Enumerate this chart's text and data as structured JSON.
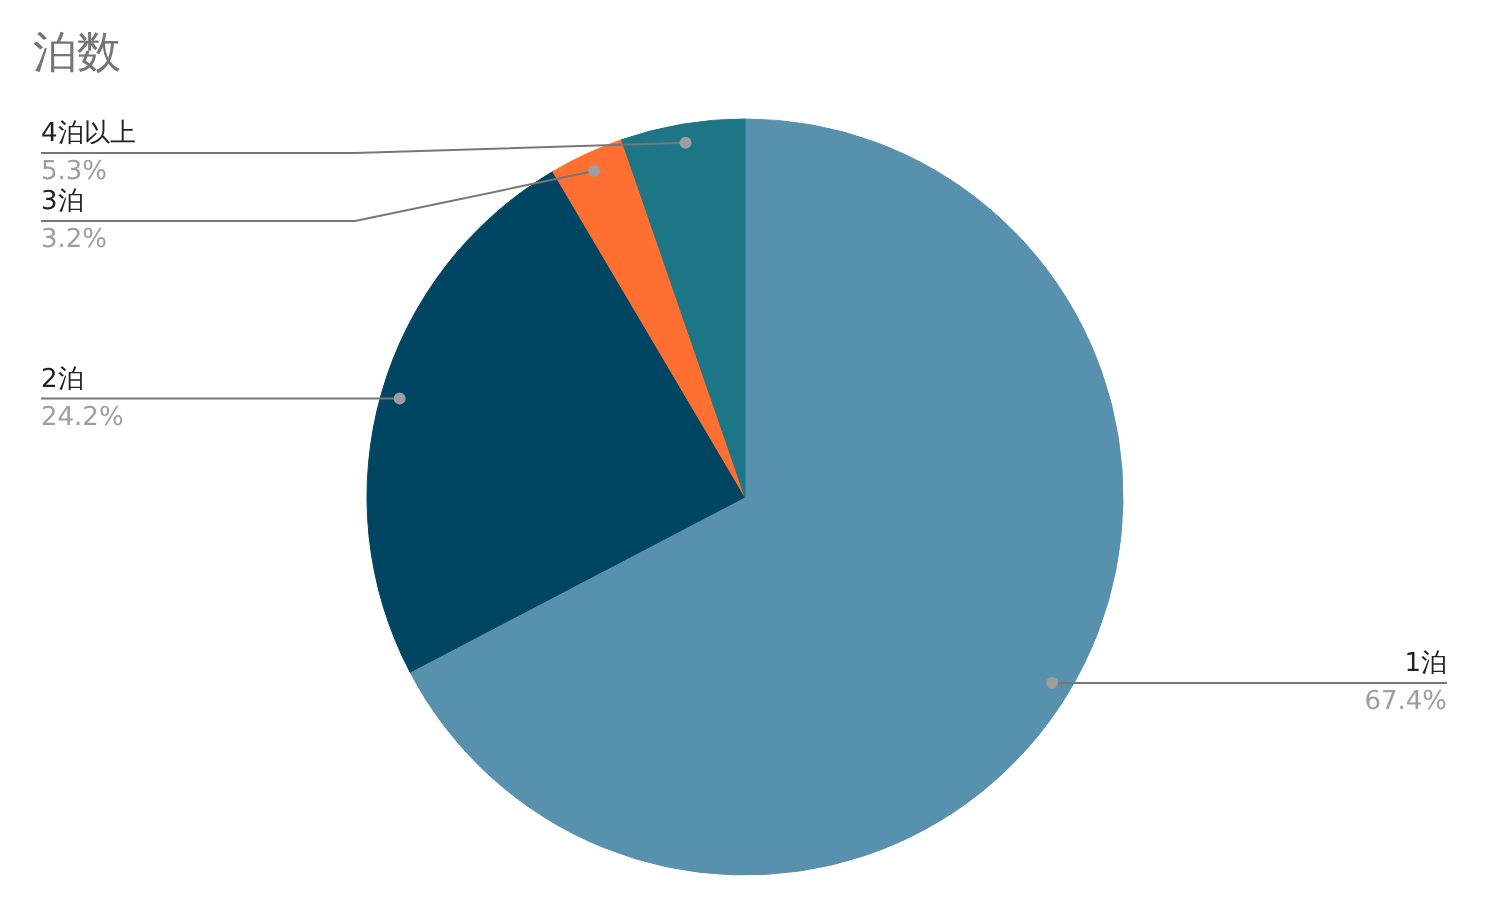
{
  "chart_data": {
    "type": "pie",
    "title": "泊数",
    "categories": [
      "1泊",
      "2泊",
      "3泊",
      "4泊以上"
    ],
    "values": [
      67.4,
      24.2,
      3.2,
      5.3
    ],
    "colors": [
      "#5891ad",
      "#004561",
      "#ff6f31",
      "#1c7685"
    ],
    "value_labels": [
      "67.4%",
      "24.2%",
      "3.2%",
      "5.3%"
    ]
  }
}
